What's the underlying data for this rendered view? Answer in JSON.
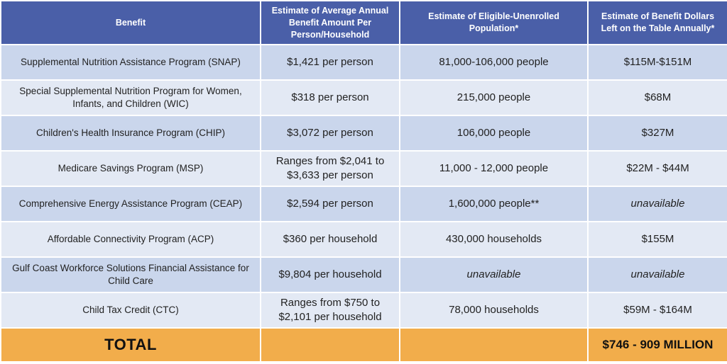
{
  "table": {
    "headers": [
      "Benefit",
      "Estimate of Average Annual Benefit Amount Per Person/Household",
      "Estimate of Eligible-Unenrolled Population*",
      "Estimate of Benefit Dollars Left on the Table Annually*"
    ],
    "rows": [
      {
        "benefit": "Supplemental Nutrition Assistance Program (SNAP)",
        "amount": "$1,421 per person",
        "population": "81,000-106,000 people",
        "dollars": "$115M-$151M"
      },
      {
        "benefit": "Special Supplemental Nutrition Program for Women, Infants, and Children (WIC)",
        "amount": "$318 per person",
        "population": "215,000 people",
        "dollars": "$68M"
      },
      {
        "benefit": "Children's Health Insurance Program (CHIP)",
        "amount": "$3,072 per person",
        "population": "106,000 people",
        "dollars": "$327M"
      },
      {
        "benefit": "Medicare Savings Program (MSP)",
        "amount": "Ranges from $2,041 to $3,633 per person",
        "population": "11,000 - 12,000 people",
        "dollars": "$22M - $44M"
      },
      {
        "benefit": "Comprehensive Energy Assistance Program (CEAP)",
        "amount": "$2,594 per person",
        "population": "1,600,000 people**",
        "dollars": "unavailable"
      },
      {
        "benefit": "Affordable Connectivity Program (ACP)",
        "amount": "$360 per household",
        "population": "430,000 households",
        "dollars": "$155M"
      },
      {
        "benefit": "Gulf Coast Workforce Solutions Financial Assistance for Child Care",
        "amount": "$9,804 per household",
        "population": "unavailable",
        "dollars": "unavailable"
      },
      {
        "benefit": "Child Tax Credit (CTC)",
        "amount": "Ranges from $750 to $2,101 per household",
        "population": "78,000 households",
        "dollars": "$59M - $164M"
      }
    ],
    "total": {
      "label": "TOTAL",
      "amount": "",
      "population": "",
      "dollars": "$746 - 909 MILLION"
    }
  },
  "colors": {
    "header_bg": "#4a5fa8",
    "row_odd_bg": "#cad6ec",
    "row_even_bg": "#e3e9f4",
    "total_bg": "#f2ad4b"
  }
}
